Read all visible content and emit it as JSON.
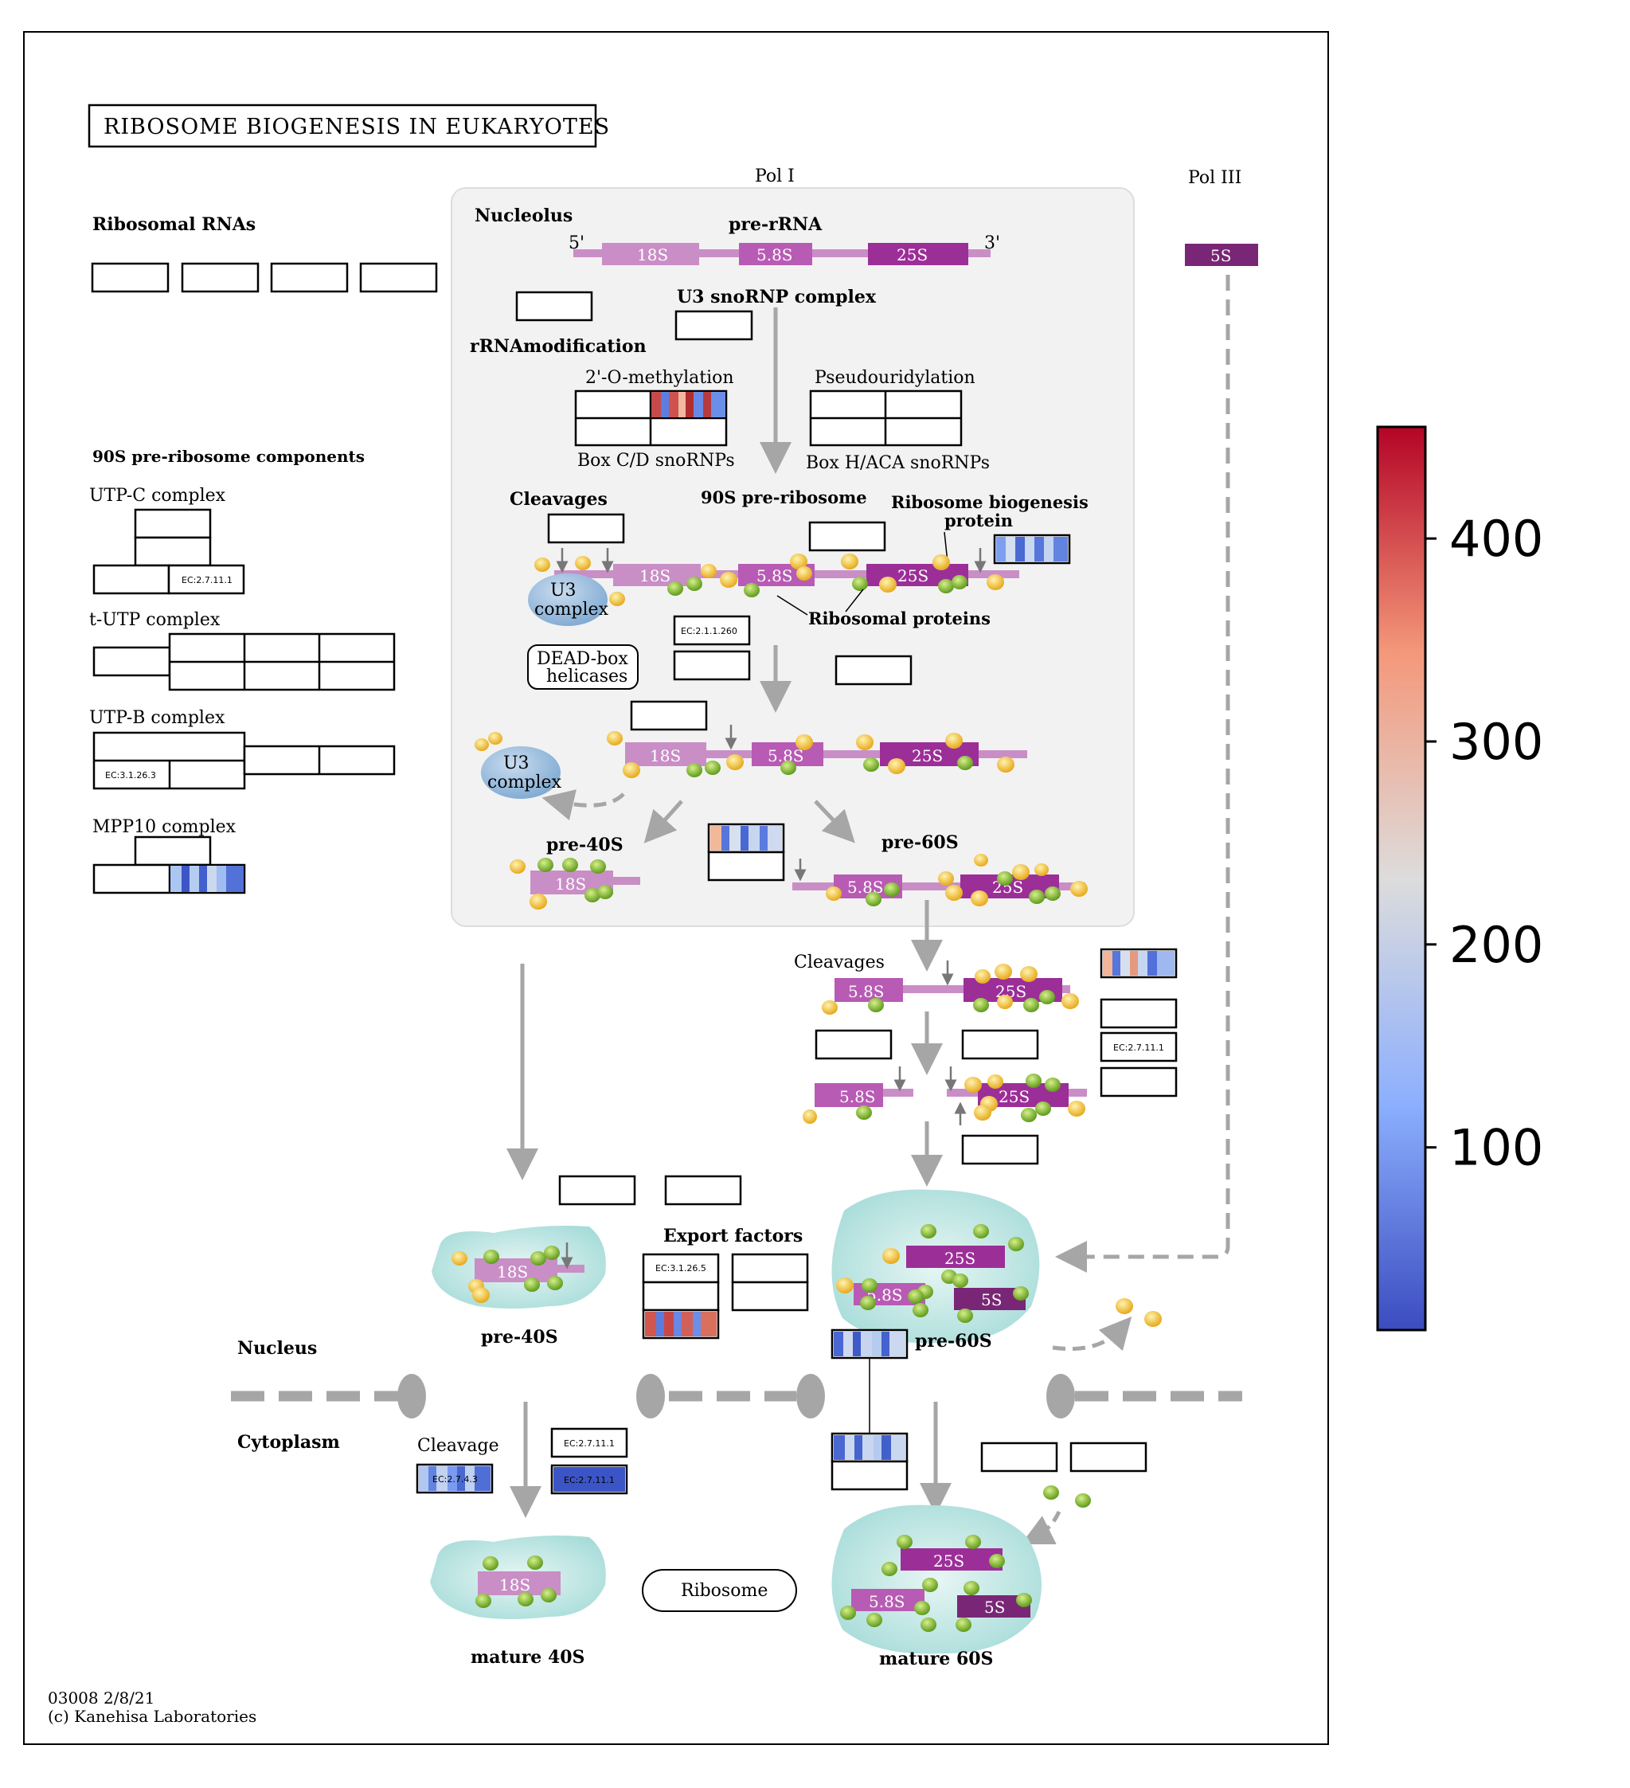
{
  "title": "RIBOSOME BIOGENESIS IN EUKARYOTES",
  "footer": {
    "map_id": "03008 2/8/21",
    "copyright": "(c) Kanehisa Laboratories"
  },
  "labels": {
    "pol_i": "Pol I",
    "pol_iii": "Pol III",
    "nucleolus": "Nucleolus",
    "pre_rrna": "pre-rRNA",
    "five_prime": "5'",
    "three_prime": "3'",
    "ribosomal_rnas": "Ribosomal RNAs",
    "u3_snornp_complex": "U3 snoRNP complex",
    "rrna_modification": "rRNAmodification",
    "two_o_methylation": "2'-O-methylation",
    "pseudouridylation": "Pseudouridylation",
    "box_cd": "Box C/D snoRNPs",
    "box_haca": "Box H/ACA snoRNPs",
    "pre90s_components": "90S pre-ribosome components",
    "utp_c": "UTP-C complex",
    "t_utp": "t-UTP complex",
    "utp_b": "UTP-B complex",
    "mpp10": "MPP10 complex",
    "cleavages": "Cleavages",
    "pre90s_ribosome": "90S pre-ribosome",
    "ribosome_biogenesis_protein_1": "Ribosome biogenesis",
    "ribosome_biogenesis_protein_2": "protein",
    "ribosomal_proteins": "Ribosomal proteins",
    "u3_1": "U3",
    "u3_2": "complex",
    "dead_box_1": "DEAD-box",
    "dead_box_2": "helicases",
    "pre40s": "pre-40S",
    "pre60s": "pre-60S",
    "cleavages2": "Cleavages",
    "export_factors": "Export factors",
    "nucleus": "Nucleus",
    "cytoplasm": "Cytoplasm",
    "cleavage": "Cleavage",
    "ribosome": "Ribosome",
    "mature40s": "mature 40S",
    "mature60s": "mature 60S"
  },
  "rna_labels": {
    "r18s": "18S",
    "r58s": "5.8S",
    "r25s": "25S",
    "r5s": "5S"
  },
  "ec_labels": {
    "ec_27111": "EC:2.7.11.1",
    "ec_21_1260": "EC:2.1.1.260",
    "ec_31263": "EC:3.1.26.3",
    "ec_31265": "EC:3.1.26.5",
    "ec_2743": "EC:2.7.4.3"
  },
  "colorbar": {
    "ticks": [
      "400",
      "300",
      "200",
      "100"
    ],
    "tick_values": [
      400,
      300,
      200,
      100
    ],
    "min": 10,
    "max": 455,
    "colormap": "coolwarm"
  },
  "colors": {
    "rna_18s": "#c98ec6",
    "rna_58s": "#b85bb4",
    "rna_25s": "#9c2e98",
    "rna_5s": "#7a2676",
    "protein_green": "#7cb62a",
    "protein_yellow": "#f5c82a",
    "u3_blue": "#8fb8dc",
    "particle": "#bde8e6",
    "nucleolus_bg": "#f2f2f2",
    "arrow_grey": "#a6a6a6"
  }
}
